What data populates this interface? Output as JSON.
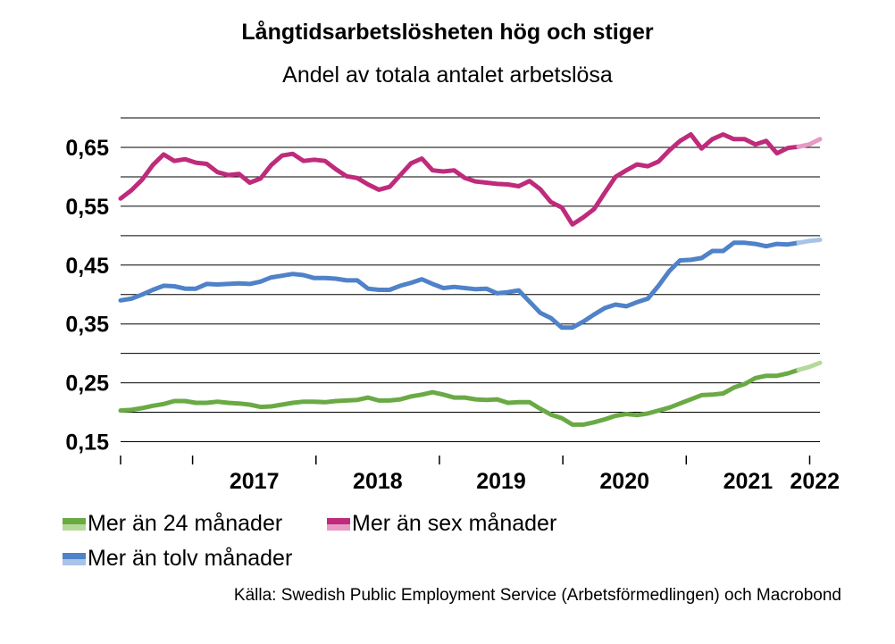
{
  "header": {
    "title": "Långtidsarbetslösheten hög och stiger",
    "subtitle": "Andel av totala antalet arbetslösa"
  },
  "source": "Källa: Swedish Public Employment Service (Arbetsförmedlingen) och Macrobond",
  "chart_data": {
    "type": "line",
    "title": "Långtidsarbetslösheten hög och stiger",
    "subtitle": "Andel av totala antalet arbetslösa",
    "xlabel": "",
    "ylabel": "",
    "ylim": [
      0.15,
      0.69
    ],
    "yticks": [
      "0,65",
      "0,55",
      "0,45",
      "0,35",
      "0,25",
      "0,15"
    ],
    "ytick_values": [
      0.65,
      0.55,
      0.45,
      0.35,
      0.25,
      0.15
    ],
    "x_start": "2016-06",
    "x_end": "2022-02",
    "xlabels": [
      "2017",
      "2018",
      "2019",
      "2020",
      "2021",
      "2022"
    ],
    "grid": true,
    "legend_position": "bottom",
    "series": [
      {
        "name": "Mer än 24 månader",
        "color": "#6aaa45",
        "light_color": "#b5d99b",
        "values": [
          0.203,
          0.204,
          0.207,
          0.211,
          0.214,
          0.219,
          0.219,
          0.216,
          0.216,
          0.218,
          0.216,
          0.215,
          0.213,
          0.209,
          0.21,
          0.213,
          0.216,
          0.218,
          0.218,
          0.217,
          0.219,
          0.22,
          0.221,
          0.225,
          0.22,
          0.22,
          0.222,
          0.227,
          0.23,
          0.234,
          0.23,
          0.225,
          0.225,
          0.222,
          0.221,
          0.222,
          0.216,
          0.217,
          0.217,
          0.206,
          0.196,
          0.19,
          0.179,
          0.179,
          0.183,
          0.188,
          0.194,
          0.197,
          0.195,
          0.198,
          0.203,
          0.208,
          0.215,
          0.222,
          0.229,
          0.23,
          0.232,
          0.242,
          0.248,
          0.258,
          0.262,
          0.262,
          0.266,
          0.272,
          0.277,
          0.284
        ]
      },
      {
        "name": "Mer än sex månader",
        "color": "#bf2b7b",
        "light_color": "#e79ac4",
        "values": [
          0.563,
          0.577,
          0.595,
          0.62,
          0.638,
          0.627,
          0.63,
          0.624,
          0.622,
          0.608,
          0.603,
          0.605,
          0.59,
          0.597,
          0.62,
          0.636,
          0.639,
          0.627,
          0.629,
          0.627,
          0.613,
          0.601,
          0.598,
          0.587,
          0.578,
          0.583,
          0.603,
          0.623,
          0.631,
          0.611,
          0.609,
          0.611,
          0.598,
          0.592,
          0.59,
          0.588,
          0.587,
          0.584,
          0.593,
          0.579,
          0.557,
          0.548,
          0.519,
          0.531,
          0.545,
          0.573,
          0.6,
          0.611,
          0.621,
          0.618,
          0.626,
          0.645,
          0.661,
          0.672,
          0.648,
          0.664,
          0.672,
          0.664,
          0.664,
          0.655,
          0.661,
          0.64,
          0.649,
          0.651,
          0.655,
          0.664
        ]
      },
      {
        "name": "Mer än tolv månader",
        "color": "#4f82c8",
        "light_color": "#a9c3e8",
        "values": [
          0.39,
          0.393,
          0.4,
          0.408,
          0.415,
          0.414,
          0.41,
          0.41,
          0.418,
          0.417,
          0.418,
          0.419,
          0.418,
          0.422,
          0.429,
          0.432,
          0.435,
          0.433,
          0.428,
          0.428,
          0.427,
          0.424,
          0.424,
          0.41,
          0.408,
          0.408,
          0.415,
          0.42,
          0.426,
          0.418,
          0.411,
          0.413,
          0.411,
          0.409,
          0.41,
          0.402,
          0.404,
          0.407,
          0.388,
          0.369,
          0.36,
          0.344,
          0.344,
          0.354,
          0.366,
          0.377,
          0.383,
          0.38,
          0.387,
          0.393,
          0.415,
          0.44,
          0.458,
          0.459,
          0.462,
          0.474,
          0.474,
          0.488,
          0.488,
          0.486,
          0.482,
          0.486,
          0.485,
          0.488,
          0.491,
          0.493
        ]
      }
    ]
  }
}
